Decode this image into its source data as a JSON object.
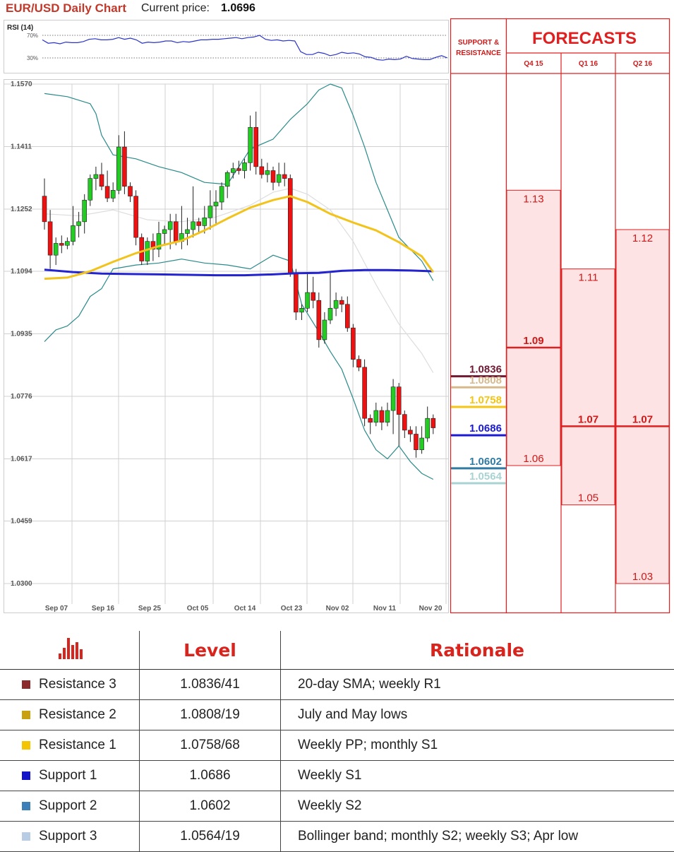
{
  "header": {
    "title": "EUR/USD Daily Chart",
    "current_price_label": "Current price:",
    "current_price": "1.0696"
  },
  "chart_data": {
    "type": "candlestick",
    "y_ticks": [
      "1.1570",
      "1.1411",
      "1.1252",
      "1.1094",
      "1.0935",
      "1.0776",
      "1.0617",
      "1.0459",
      "1.0300"
    ],
    "ylim": [
      1.03,
      1.157
    ],
    "x_ticks": [
      "Sep 07",
      "Sep 16",
      "Sep 25",
      "Oct 05",
      "Oct 14",
      "Oct 23",
      "Nov 02",
      "Nov 11",
      "Nov 20"
    ],
    "candles": [
      {
        "o": 1.1285,
        "h": 1.133,
        "l": 1.12,
        "c": 1.122
      },
      {
        "o": 1.122,
        "h": 1.125,
        "l": 1.11,
        "c": 1.1135
      },
      {
        "o": 1.1135,
        "h": 1.118,
        "l": 1.111,
        "c": 1.1165
      },
      {
        "o": 1.1165,
        "h": 1.1185,
        "l": 1.114,
        "c": 1.116
      },
      {
        "o": 1.116,
        "h": 1.118,
        "l": 1.115,
        "c": 1.117
      },
      {
        "o": 1.117,
        "h": 1.126,
        "l": 1.116,
        "c": 1.121
      },
      {
        "o": 1.121,
        "h": 1.1245,
        "l": 1.118,
        "c": 1.122
      },
      {
        "o": 1.122,
        "h": 1.129,
        "l": 1.119,
        "c": 1.1275
      },
      {
        "o": 1.1275,
        "h": 1.134,
        "l": 1.126,
        "c": 1.133
      },
      {
        "o": 1.133,
        "h": 1.136,
        "l": 1.13,
        "c": 1.134
      },
      {
        "o": 1.134,
        "h": 1.137,
        "l": 1.13,
        "c": 1.131
      },
      {
        "o": 1.131,
        "h": 1.135,
        "l": 1.127,
        "c": 1.128
      },
      {
        "o": 1.128,
        "h": 1.132,
        "l": 1.127,
        "c": 1.13
      },
      {
        "o": 1.13,
        "h": 1.144,
        "l": 1.129,
        "c": 1.141
      },
      {
        "o": 1.141,
        "h": 1.145,
        "l": 1.129,
        "c": 1.131
      },
      {
        "o": 1.131,
        "h": 1.132,
        "l": 1.127,
        "c": 1.1285
      },
      {
        "o": 1.1285,
        "h": 1.13,
        "l": 1.116,
        "c": 1.118
      },
      {
        "o": 1.118,
        "h": 1.119,
        "l": 1.111,
        "c": 1.112
      },
      {
        "o": 1.112,
        "h": 1.118,
        "l": 1.111,
        "c": 1.117
      },
      {
        "o": 1.117,
        "h": 1.119,
        "l": 1.112,
        "c": 1.115
      },
      {
        "o": 1.115,
        "h": 1.122,
        "l": 1.113,
        "c": 1.119
      },
      {
        "o": 1.119,
        "h": 1.121,
        "l": 1.116,
        "c": 1.12
      },
      {
        "o": 1.12,
        "h": 1.124,
        "l": 1.115,
        "c": 1.122
      },
      {
        "o": 1.122,
        "h": 1.124,
        "l": 1.116,
        "c": 1.117
      },
      {
        "o": 1.117,
        "h": 1.126,
        "l": 1.115,
        "c": 1.119
      },
      {
        "o": 1.119,
        "h": 1.123,
        "l": 1.116,
        "c": 1.12
      },
      {
        "o": 1.12,
        "h": 1.131,
        "l": 1.118,
        "c": 1.122
      },
      {
        "o": 1.122,
        "h": 1.123,
        "l": 1.119,
        "c": 1.121
      },
      {
        "o": 1.121,
        "h": 1.126,
        "l": 1.119,
        "c": 1.123
      },
      {
        "o": 1.123,
        "h": 1.13,
        "l": 1.12,
        "c": 1.126
      },
      {
        "o": 1.126,
        "h": 1.13,
        "l": 1.121,
        "c": 1.127
      },
      {
        "o": 1.127,
        "h": 1.132,
        "l": 1.125,
        "c": 1.131
      },
      {
        "o": 1.131,
        "h": 1.135,
        "l": 1.128,
        "c": 1.1345
      },
      {
        "o": 1.1345,
        "h": 1.137,
        "l": 1.133,
        "c": 1.1355
      },
      {
        "o": 1.1355,
        "h": 1.1375,
        "l": 1.134,
        "c": 1.135
      },
      {
        "o": 1.135,
        "h": 1.138,
        "l": 1.133,
        "c": 1.137
      },
      {
        "o": 1.137,
        "h": 1.149,
        "l": 1.135,
        "c": 1.146
      },
      {
        "o": 1.146,
        "h": 1.15,
        "l": 1.134,
        "c": 1.136
      },
      {
        "o": 1.136,
        "h": 1.138,
        "l": 1.133,
        "c": 1.134
      },
      {
        "o": 1.134,
        "h": 1.137,
        "l": 1.132,
        "c": 1.135
      },
      {
        "o": 1.135,
        "h": 1.136,
        "l": 1.13,
        "c": 1.132
      },
      {
        "o": 1.132,
        "h": 1.137,
        "l": 1.131,
        "c": 1.134
      },
      {
        "o": 1.134,
        "h": 1.137,
        "l": 1.131,
        "c": 1.133
      },
      {
        "o": 1.133,
        "h": 1.134,
        "l": 1.108,
        "c": 1.109
      },
      {
        "o": 1.109,
        "h": 1.11,
        "l": 1.097,
        "c": 1.099
      },
      {
        "o": 1.099,
        "h": 1.101,
        "l": 1.097,
        "c": 1.1
      },
      {
        "o": 1.1,
        "h": 1.109,
        "l": 1.099,
        "c": 1.104
      },
      {
        "o": 1.104,
        "h": 1.108,
        "l": 1.1,
        "c": 1.102
      },
      {
        "o": 1.102,
        "h": 1.104,
        "l": 1.09,
        "c": 1.092
      },
      {
        "o": 1.092,
        "h": 1.099,
        "l": 1.091,
        "c": 1.097
      },
      {
        "o": 1.097,
        "h": 1.109,
        "l": 1.096,
        "c": 1.1
      },
      {
        "o": 1.1,
        "h": 1.104,
        "l": 1.098,
        "c": 1.102
      },
      {
        "o": 1.102,
        "h": 1.103,
        "l": 1.099,
        "c": 1.101
      },
      {
        "o": 1.101,
        "h": 1.103,
        "l": 1.094,
        "c": 1.095
      },
      {
        "o": 1.095,
        "h": 1.096,
        "l": 1.085,
        "c": 1.087
      },
      {
        "o": 1.087,
        "h": 1.088,
        "l": 1.084,
        "c": 1.085
      },
      {
        "o": 1.085,
        "h": 1.087,
        "l": 1.07,
        "c": 1.072
      },
      {
        "o": 1.072,
        "h": 1.073,
        "l": 1.068,
        "c": 1.071
      },
      {
        "o": 1.071,
        "h": 1.076,
        "l": 1.07,
        "c": 1.074
      },
      {
        "o": 1.074,
        "h": 1.075,
        "l": 1.069,
        "c": 1.071
      },
      {
        "o": 1.071,
        "h": 1.076,
        "l": 1.07,
        "c": 1.074
      },
      {
        "o": 1.074,
        "h": 1.082,
        "l": 1.068,
        "c": 1.08
      },
      {
        "o": 1.08,
        "h": 1.081,
        "l": 1.065,
        "c": 1.073
      },
      {
        "o": 1.073,
        "h": 1.074,
        "l": 1.067,
        "c": 1.069
      },
      {
        "o": 1.069,
        "h": 1.07,
        "l": 1.066,
        "c": 1.068
      },
      {
        "o": 1.068,
        "h": 1.07,
        "l": 1.062,
        "c": 1.064
      },
      {
        "o": 1.064,
        "h": 1.07,
        "l": 1.063,
        "c": 1.067
      },
      {
        "o": 1.067,
        "h": 1.075,
        "l": 1.066,
        "c": 1.072
      },
      {
        "o": 1.072,
        "h": 1.073,
        "l": 1.068,
        "c": 1.0696
      }
    ],
    "sma_slow": [
      [
        0,
        1.1098
      ],
      [
        5,
        1.1092
      ],
      [
        10,
        1.1088
      ],
      [
        15,
        1.1087
      ],
      [
        20,
        1.1086
      ],
      [
        25,
        1.1085
      ],
      [
        30,
        1.1084
      ],
      [
        35,
        1.1084
      ],
      [
        40,
        1.1086
      ],
      [
        44,
        1.1089
      ],
      [
        48,
        1.109
      ],
      [
        52,
        1.1095
      ],
      [
        56,
        1.1097
      ],
      [
        60,
        1.1097
      ],
      [
        64,
        1.1096
      ],
      [
        68,
        1.1094
      ]
    ],
    "sma_fast": [
      [
        0,
        1.1075
      ],
      [
        4,
        1.1078
      ],
      [
        8,
        1.1094
      ],
      [
        12,
        1.1118
      ],
      [
        16,
        1.114
      ],
      [
        20,
        1.1158
      ],
      [
        24,
        1.1172
      ],
      [
        28,
        1.1198
      ],
      [
        32,
        1.1228
      ],
      [
        36,
        1.1256
      ],
      [
        40,
        1.1275
      ],
      [
        43,
        1.1285
      ],
      [
        46,
        1.127
      ],
      [
        50,
        1.124
      ],
      [
        54,
        1.1218
      ],
      [
        58,
        1.1198
      ],
      [
        62,
        1.1168
      ],
      [
        66,
        1.1132
      ],
      [
        68,
        1.1092
      ]
    ],
    "sma_20": [
      [
        0,
        1.124
      ],
      [
        6,
        1.1235
      ],
      [
        12,
        1.125
      ],
      [
        18,
        1.1225
      ],
      [
        24,
        1.122
      ],
      [
        30,
        1.1232
      ],
      [
        36,
        1.1262
      ],
      [
        40,
        1.1295
      ],
      [
        43,
        1.1305
      ],
      [
        46,
        1.129
      ],
      [
        50,
        1.125
      ],
      [
        54,
        1.117
      ],
      [
        58,
        1.106
      ],
      [
        62,
        1.096
      ],
      [
        66,
        1.0885
      ],
      [
        68,
        1.0836
      ]
    ],
    "bb_upper": [
      [
        0,
        1.1546
      ],
      [
        4,
        1.1538
      ],
      [
        8,
        1.152
      ],
      [
        9,
        1.1495
      ],
      [
        10,
        1.144
      ],
      [
        12,
        1.139
      ],
      [
        16,
        1.138
      ],
      [
        20,
        1.136
      ],
      [
        24,
        1.1345
      ],
      [
        28,
        1.132
      ],
      [
        32,
        1.1315
      ],
      [
        36,
        1.1405
      ],
      [
        40,
        1.143
      ],
      [
        43,
        1.148
      ],
      [
        46,
        1.152
      ],
      [
        48,
        1.1555
      ],
      [
        50,
        1.157
      ],
      [
        52,
        1.156
      ],
      [
        54,
        1.149
      ],
      [
        56,
        1.141
      ],
      [
        58,
        1.132
      ],
      [
        60,
        1.125
      ],
      [
        62,
        1.118
      ],
      [
        64,
        1.115
      ],
      [
        66,
        1.112
      ],
      [
        68,
        1.107
      ]
    ],
    "bb_lower": [
      [
        0,
        1.0915
      ],
      [
        2,
        1.0945
      ],
      [
        4,
        1.0955
      ],
      [
        6,
        1.098
      ],
      [
        8,
        1.103
      ],
      [
        10,
        1.105
      ],
      [
        12,
        1.11
      ],
      [
        16,
        1.111
      ],
      [
        20,
        1.1115
      ],
      [
        24,
        1.1125
      ],
      [
        28,
        1.1115
      ],
      [
        32,
        1.111
      ],
      [
        36,
        1.11
      ],
      [
        40,
        1.1135
      ],
      [
        43,
        1.112
      ],
      [
        45,
        1.101
      ],
      [
        48,
        1.094
      ],
      [
        50,
        1.089
      ],
      [
        52,
        1.0845
      ],
      [
        54,
        1.077
      ],
      [
        56,
        1.069
      ],
      [
        58,
        1.064
      ],
      [
        60,
        1.0617
      ],
      [
        62,
        1.065
      ],
      [
        64,
        1.061
      ],
      [
        66,
        1.058
      ],
      [
        68,
        1.0565
      ]
    ],
    "rsi": {
      "label": "RSI (14)",
      "levels": [
        "70%",
        "30%"
      ],
      "values": [
        62,
        56,
        57,
        55,
        58,
        57,
        57,
        59,
        63,
        64,
        62,
        62,
        63,
        66,
        63,
        65,
        62,
        56,
        58,
        57,
        58,
        60,
        60,
        57,
        59,
        58,
        60,
        62,
        62,
        63,
        63,
        64,
        65,
        66,
        64,
        66,
        67,
        70,
        63,
        61,
        62,
        60,
        61,
        60,
        41,
        36,
        36,
        40,
        38,
        34,
        36,
        40,
        38,
        39,
        37,
        32,
        31,
        27,
        26,
        28,
        27,
        28,
        33,
        29,
        28,
        27,
        27,
        31,
        34,
        30
      ]
    }
  },
  "sr_panel": {
    "header": "SUPPORT & RESISTANCE",
    "levels": [
      {
        "value": "1.0836",
        "color": "#701a33"
      },
      {
        "value": "1.0808",
        "color": "#d6b98c"
      },
      {
        "value": "1.0758",
        "color": "#f3c614"
      },
      {
        "value": "1.0686",
        "color": "#1a1ad6"
      },
      {
        "value": "1.0602",
        "color": "#2f7ba3"
      },
      {
        "value": "1.0564",
        "color": "#a9d3d3"
      }
    ]
  },
  "forecasts": {
    "title": "FORECASTS",
    "columns": [
      {
        "label": "Q4 15",
        "high": "1.13",
        "median": "1.09",
        "low": "1.06"
      },
      {
        "label": "Q1 16",
        "high": "1.11",
        "median": "1.07",
        "low": "1.05"
      },
      {
        "label": "Q2 16",
        "high": "1.12",
        "median": "1.07",
        "low": "1.03"
      }
    ]
  },
  "table": {
    "col_level": "Level",
    "col_rationale": "Rationale",
    "rows": [
      {
        "name": "Resistance 3",
        "level": "1.0836/41",
        "rationale": "20-day SMA; weekly R1",
        "color": "#8b2b2b"
      },
      {
        "name": "Resistance 2",
        "level": "1.0808/19",
        "rationale": "July and May lows",
        "color": "#c9a010"
      },
      {
        "name": "Resistance 1",
        "level": "1.0758/68",
        "rationale": "Weekly PP; monthly S1",
        "color": "#f5c400"
      },
      {
        "name": "Support 1",
        "level": "1.0686",
        "rationale": "Weekly S1",
        "color": "#1414c8"
      },
      {
        "name": "Support 2",
        "level": "1.0602",
        "rationale": "Weekly S2",
        "color": "#3d80b8"
      },
      {
        "name": "Support 3",
        "level": "1.0564/19",
        "rationale": "Bollinger band; monthly S2; weekly S3; Apr low",
        "color": "#b8cce4"
      }
    ]
  },
  "colors": {
    "bull": "#22cc22",
    "bear": "#ee1111",
    "sma_slow": "#2323d0",
    "sma_fast": "#f2c31b",
    "bb": "#2a8a8a",
    "sma20": "#dddddd",
    "rsi": "#2a34c8",
    "forecast_red": "#e02020",
    "forecast_fill": "#fde3e3"
  }
}
